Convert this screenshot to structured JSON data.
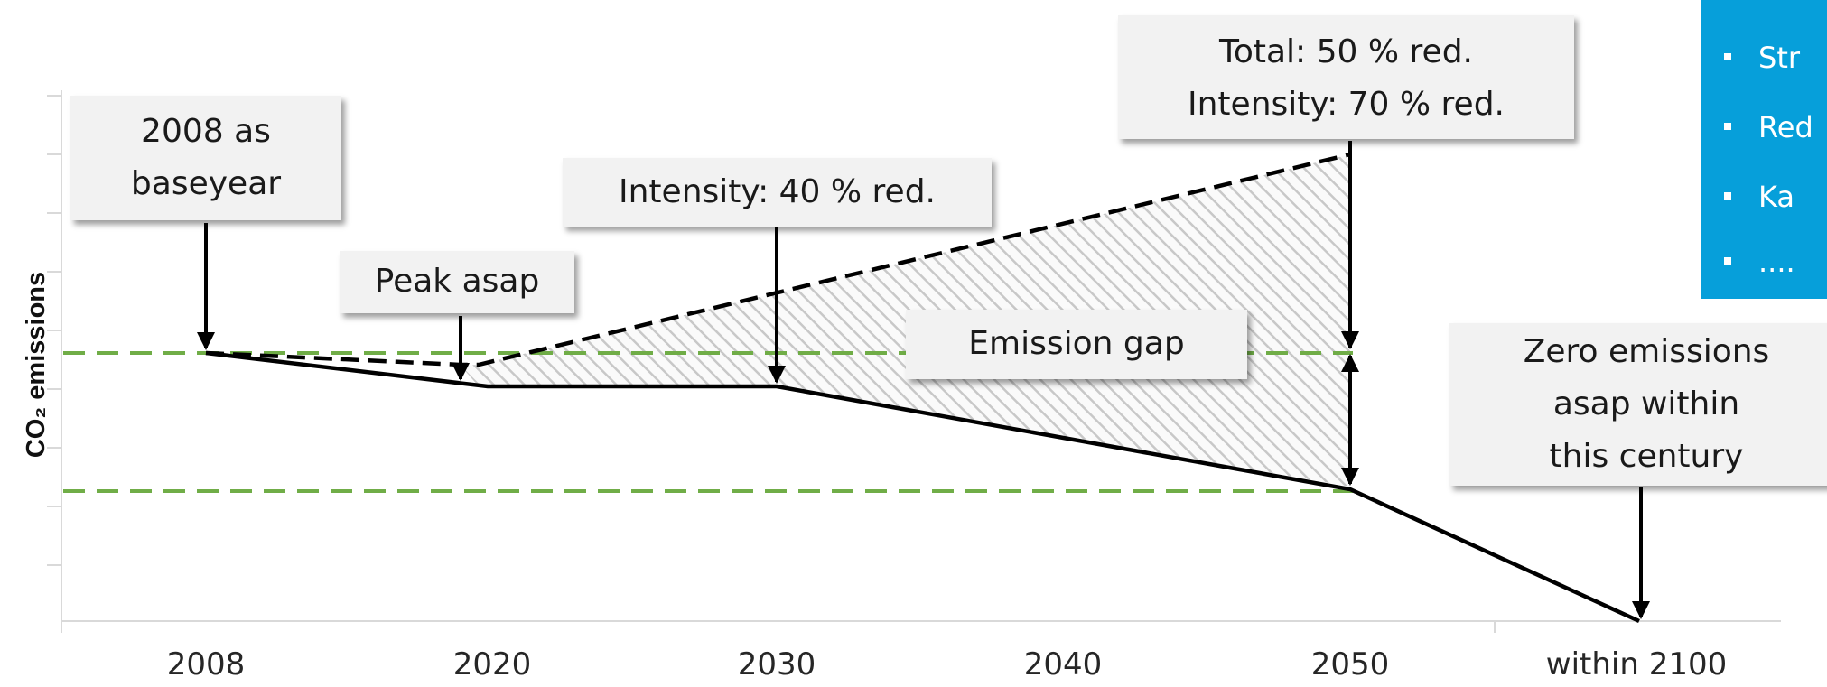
{
  "chart_data": {
    "type": "line",
    "ylabel": "CO₂ emissions",
    "x_ticks": [
      "2008",
      "2020",
      "2030",
      "2040",
      "2050",
      "within 2100"
    ],
    "series": [
      {
        "style": "solid",
        "color": "#000000",
        "x": [
          "2008",
          "2020",
          "2030",
          "2050",
          "within 2100"
        ],
        "y": [
          4.6,
          4.0,
          4.0,
          2.3,
          0.0
        ]
      },
      {
        "style": "dashed",
        "color": "#000000",
        "x": [
          "2008",
          "2018",
          "2020",
          "2050"
        ],
        "y": [
          4.6,
          4.4,
          4.4,
          8.0
        ]
      },
      {
        "style": "dashed-reference",
        "color": "#70ad47",
        "x": [
          "2008",
          "2050"
        ],
        "y": [
          4.6,
          4.6
        ]
      },
      {
        "style": "dashed-reference",
        "color": "#70ad47",
        "x": [
          "2008",
          "2050"
        ],
        "y": [
          2.3,
          2.3
        ]
      }
    ],
    "gap_region": "hatched area between the dashed and solid lines, 2020-2050",
    "annotations": [
      {
        "id": "baseyear",
        "lines": [
          "2008 as",
          "baseyear"
        ]
      },
      {
        "id": "peak",
        "lines": [
          "Peak asap"
        ]
      },
      {
        "id": "intensity40",
        "lines": [
          "Intensity: 40 % red."
        ]
      },
      {
        "id": "total50",
        "lines": [
          "Total: 50 % red.",
          "Intensity: 70 % red."
        ]
      },
      {
        "id": "gap",
        "lines": [
          "Emission gap"
        ]
      },
      {
        "id": "zero",
        "lines": [
          "Zero emissions",
          "asap within",
          "this century"
        ]
      }
    ],
    "grid": false,
    "colors": {
      "line": "#000000",
      "reference": "#70ad47",
      "hatch": "#c8c8c8",
      "callout_bg": "#f2f2f2"
    }
  },
  "side_panel": {
    "background": "#069fda",
    "items": [
      "Str",
      "Red",
      "Ka",
      "...."
    ]
  }
}
